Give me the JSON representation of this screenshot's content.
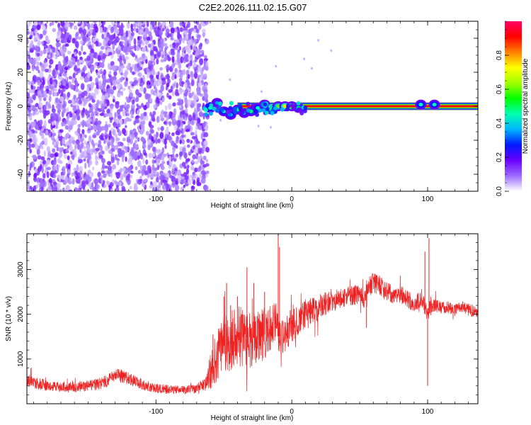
{
  "title": "C2E2.2026.111.02.15.G07",
  "chart_data": [
    {
      "type": "heatmap",
      "xlabel": "Height of straight line (km)",
      "ylabel": "Frequency (Hz)",
      "xlim": [
        -195,
        137
      ],
      "ylim": [
        -50,
        50
      ],
      "xticks": [
        -100,
        0,
        100
      ],
      "yticks": [
        -40,
        -20,
        0,
        20,
        40
      ],
      "colorbar": {
        "label": "Normalized spectral amplitude",
        "range": [
          0,
          1
        ],
        "ticks": [
          0.0,
          0.2,
          0.4,
          0.6,
          0.8
        ],
        "colors": [
          "#ffffff",
          "#9b6bff",
          "#6a00ff",
          "#0018ff",
          "#00b4ff",
          "#00ffb0",
          "#00ff00",
          "#a0ff00",
          "#ffff00",
          "#ff8000",
          "#ff0000",
          "#ff0066"
        ]
      },
      "noise_region_km": [
        -195,
        -62
      ],
      "signal_line": {
        "x_start": -65,
        "x_end": 137,
        "frequency_hz": 0,
        "amplitude": 0.9,
        "wiggle_points": [
          {
            "x": -60,
            "y": -1,
            "amp": 0.45
          },
          {
            "x": -55,
            "y": 2,
            "amp": 0.35
          },
          {
            "x": -50,
            "y": -3,
            "amp": 0.45
          },
          {
            "x": -45,
            "y": -5,
            "amp": 0.4
          },
          {
            "x": -40,
            "y": -2,
            "amp": 0.5
          },
          {
            "x": -35,
            "y": -4,
            "amp": 0.35
          },
          {
            "x": -30,
            "y": -3,
            "amp": 0.5
          },
          {
            "x": -25,
            "y": -1,
            "amp": 0.45
          },
          {
            "x": -20,
            "y": 1,
            "amp": 0.55
          },
          {
            "x": -15,
            "y": -2,
            "amp": 0.5
          },
          {
            "x": -10,
            "y": 0,
            "amp": 0.6
          },
          {
            "x": -5,
            "y": 0,
            "amp": 0.75
          },
          {
            "x": 0,
            "y": 0,
            "amp": 0.85
          },
          {
            "x": 5,
            "y": -1,
            "amp": 0.5
          },
          {
            "x": 95,
            "y": 1,
            "amp": 0.45
          },
          {
            "x": 105,
            "y": 1,
            "amp": 0.45
          }
        ]
      }
    },
    {
      "type": "line",
      "xlabel": "Height of straight line (km)",
      "ylabel": "SNR (10 * v/v)",
      "xlim": [
        -195,
        137
      ],
      "ylim": [
        0,
        3800
      ],
      "xticks": [
        -100,
        0,
        100
      ],
      "yticks": [
        1000,
        2000,
        3000
      ],
      "color": "#ee2222",
      "series": [
        {
          "name": "SNR",
          "x": [
            -195,
            -185,
            -175,
            -165,
            -155,
            -145,
            -135,
            -128,
            -120,
            -110,
            -100,
            -90,
            -80,
            -70,
            -63,
            -58,
            -50,
            -45,
            -40,
            -35,
            -30,
            -25,
            -20,
            -15,
            -12,
            -10,
            -5,
            0,
            5,
            10,
            15,
            20,
            25,
            30,
            35,
            40,
            45,
            50,
            53,
            55,
            60,
            65,
            70,
            75,
            80,
            85,
            90,
            95,
            98,
            100,
            102,
            105,
            110,
            115,
            120,
            125,
            130,
            137
          ],
          "y": [
            520,
            440,
            380,
            360,
            390,
            420,
            520,
            640,
            560,
            430,
            340,
            320,
            300,
            340,
            450,
            900,
            1300,
            1400,
            1500,
            1500,
            1450,
            1500,
            1550,
            1700,
            1900,
            1500,
            1550,
            1750,
            1850,
            2000,
            2050,
            2150,
            2250,
            2300,
            2350,
            2400,
            2420,
            2450,
            2300,
            2550,
            2700,
            2650,
            2500,
            2450,
            2450,
            2350,
            2250,
            2300,
            2150,
            2000,
            2200,
            2200,
            2150,
            2150,
            2100,
            2150,
            2100,
            2050
          ],
          "noise_amplitude": [
            140,
            130,
            110,
            110,
            120,
            130,
            150,
            160,
            140,
            120,
            110,
            100,
            100,
            110,
            160,
            550,
            650,
            700,
            700,
            650,
            650,
            600,
            600,
            500,
            450,
            450,
            400,
            400,
            380,
            350,
            330,
            300,
            280,
            250,
            230,
            220,
            220,
            220,
            220,
            230,
            240,
            230,
            220,
            220,
            210,
            210,
            200,
            200,
            200,
            180,
            180,
            150,
            140,
            140,
            140,
            140,
            140,
            140
          ],
          "spikes": [
            {
              "x": -58,
              "y": 1550
            },
            {
              "x": -50,
              "y": 2400
            },
            {
              "x": -48,
              "y": 2700
            },
            {
              "x": -45,
              "y": 2200
            },
            {
              "x": -40,
              "y": 2400
            },
            {
              "x": -33,
              "y": 3050
            },
            {
              "x": -28,
              "y": 2700
            },
            {
              "x": -20,
              "y": 2500
            },
            {
              "x": -10,
              "y": 3850
            },
            {
              "x": -9,
              "y": 3500
            },
            {
              "x": 55,
              "y": 1700
            },
            {
              "x": 98,
              "y": 3400
            },
            {
              "x": 100,
              "y": 400
            },
            {
              "x": 101,
              "y": 3700
            }
          ]
        }
      ]
    }
  ]
}
